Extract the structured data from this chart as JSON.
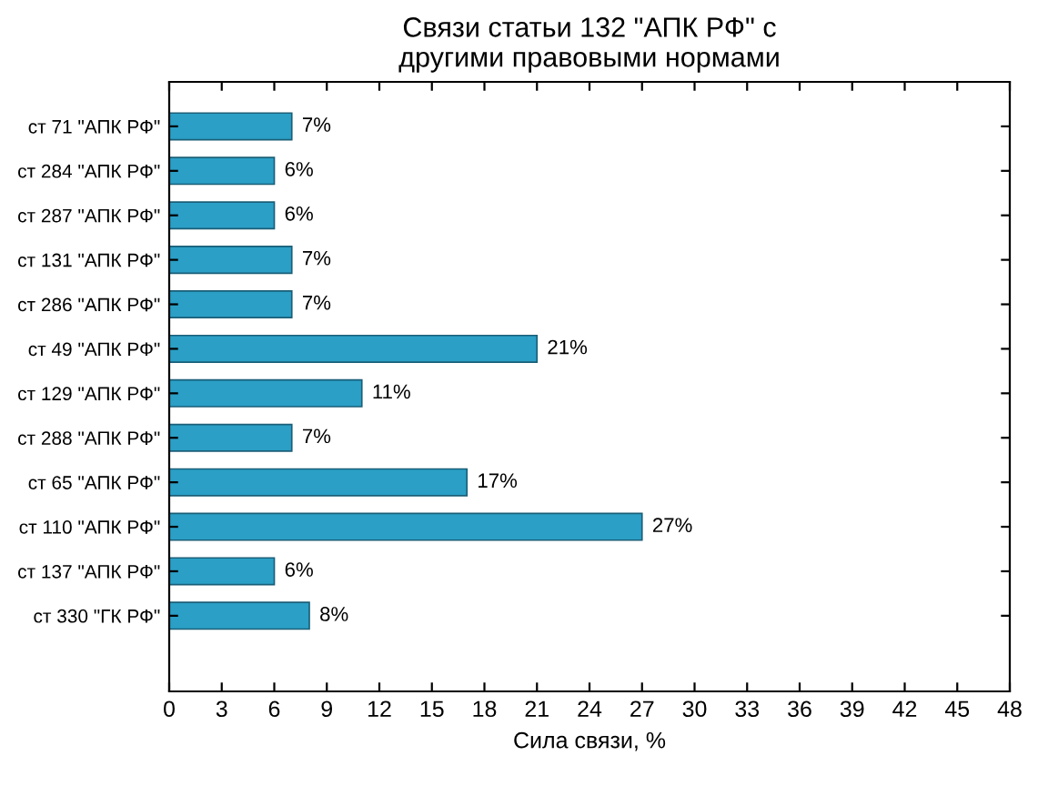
{
  "chart_data": {
    "type": "bar",
    "orientation": "horizontal",
    "title": "Связи статьи 132 \"АПК РФ\" с\nдругими правовыми нормами",
    "xlabel": "Сила связи, %",
    "categories": [
      "ст 71 \"АПК РФ\"",
      "ст 284 \"АПК РФ\"",
      "ст 287 \"АПК РФ\"",
      "ст 131 \"АПК РФ\"",
      "ст 286 \"АПК РФ\"",
      "ст 49 \"АПК РФ\"",
      "ст 129 \"АПК РФ\"",
      "ст 288 \"АПК РФ\"",
      "ст 65 \"АПК РФ\"",
      "ст 110 \"АПК РФ\"",
      "ст 137 \"АПК РФ\"",
      "ст 330 \"ГК РФ\""
    ],
    "values": [
      7,
      6,
      6,
      7,
      7,
      21,
      11,
      7,
      17,
      27,
      6,
      8
    ],
    "value_labels": [
      "7%",
      "6%",
      "6%",
      "7%",
      "7%",
      "21%",
      "11%",
      "7%",
      "17%",
      "27%",
      "6%",
      "8%"
    ],
    "color": "#2b9fc6",
    "xlim": [
      0,
      48
    ],
    "xticks": [
      0,
      3,
      6,
      9,
      12,
      15,
      18,
      21,
      24,
      27,
      30,
      33,
      36,
      39,
      42,
      45,
      48
    ],
    "grid": false
  }
}
